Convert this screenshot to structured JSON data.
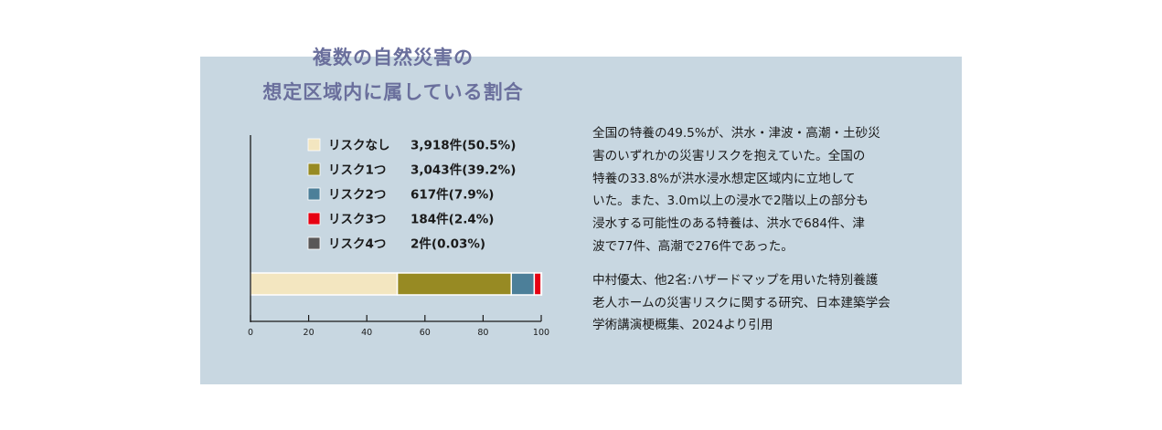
{
  "title": {
    "line1": "複数の自然災害の",
    "line2": "想定区域内に属している割合"
  },
  "colors": {
    "panel_bg": "#c8d7e1",
    "title": "#6a6f9c",
    "risk_none": "#f3e6c0",
    "risk_1": "#978a23",
    "risk_2": "#4c7f99",
    "risk_3": "#e60012",
    "risk_4": "#595757"
  },
  "chart_data": {
    "type": "bar",
    "orientation": "horizontal-stacked",
    "xlim": [
      0,
      100
    ],
    "xticks": [
      "0",
      "20",
      "40",
      "60",
      "80",
      "100"
    ],
    "legend_position": "top",
    "series": [
      {
        "name": "リスクなし",
        "count": "3,918件(50.5%)",
        "value": 50.5,
        "color": "#f3e6c0"
      },
      {
        "name": "リスク1つ",
        "count": "3,043件(39.2%)",
        "value": 39.2,
        "color": "#978a23"
      },
      {
        "name": "リスク2つ",
        "count": "617件(7.9%)",
        "value": 7.9,
        "color": "#4c7f99"
      },
      {
        "name": "リスク3つ",
        "count": "184件(2.4%)",
        "value": 2.4,
        "color": "#e60012"
      },
      {
        "name": "リスク4つ",
        "count": "2件(0.03%)",
        "value": 0.03,
        "color": "#595757"
      }
    ]
  },
  "description": {
    "paragraph1": [
      "全国の特養の49.5%が、洪水・津波・高潮・土砂災",
      "害のいずれかの災害リスクを抱えていた。全国の",
      "特養の33.8%が洪水浸水想定区域内に立地して",
      "いた。また、3.0m以上の浸水で2階以上の部分も",
      "浸水する可能性のある特養は、洪水で684件、津",
      "波で77件、高潮で276件であった。"
    ],
    "paragraph2": [
      "中村優太、他2名:ハザードマップを用いた特別養護",
      "老人ホームの災害リスクに関する研究、日本建築学会",
      "学術講演梗概集、2024より引用"
    ]
  }
}
